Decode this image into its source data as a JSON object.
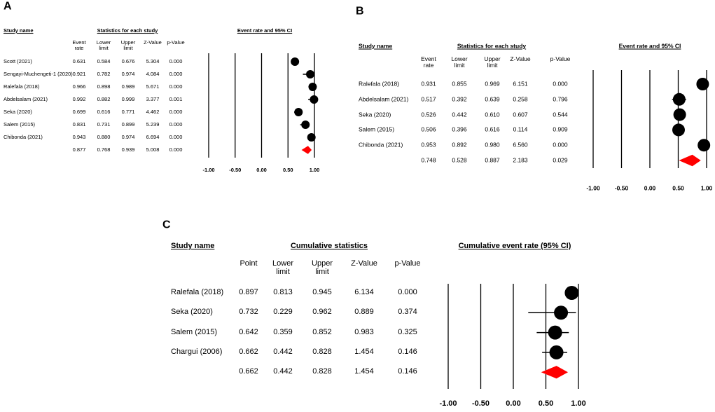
{
  "chart_data": [
    {
      "type": "forest",
      "panel": "A",
      "name_header": "Study name",
      "table_title": "Statistics for each study",
      "title": "Event rate and 95% CI",
      "columns": [
        "Event rate",
        "Lower limit",
        "Upper limit",
        "Z-Value",
        "p-Value"
      ],
      "rows": [
        {
          "name": "Scott (2021)",
          "values": [
            0.631,
            0.584,
            0.676,
            5.304,
            0
          ],
          "value_labels": [
            "0.631",
            "0.584",
            "0.676",
            "5.304",
            "0.000"
          ]
        },
        {
          "name": "Sengayi-Muchengeti-1 (2020)",
          "values": [
            0.921,
            0.782,
            0.974,
            4.084,
            0
          ],
          "value_labels": [
            "0.921",
            "0.782",
            "0.974",
            "4.084",
            "0.000"
          ]
        },
        {
          "name": "Ralefala (2018)",
          "values": [
            0.966,
            0.898,
            0.989,
            5.671,
            0
          ],
          "value_labels": [
            "0.966",
            "0.898",
            "0.989",
            "5.671",
            "0.000"
          ]
        },
        {
          "name": "Abdelsalam (2021)",
          "values": [
            0.992,
            0.882,
            0.999,
            3.377,
            0.001
          ],
          "value_labels": [
            "0.992",
            "0.882",
            "0.999",
            "3.377",
            "0.001"
          ]
        },
        {
          "name": "Seka (2020)",
          "values": [
            0.699,
            0.616,
            0.771,
            4.462,
            0
          ],
          "value_labels": [
            "0.699",
            "0.616",
            "0.771",
            "4.462",
            "0.000"
          ]
        },
        {
          "name": "Salem (2015)",
          "values": [
            0.831,
            0.731,
            0.899,
            5.239,
            0
          ],
          "value_labels": [
            "0.831",
            "0.731",
            "0.899",
            "5.239",
            "0.000"
          ]
        },
        {
          "name": "Chibonda (2021)",
          "values": [
            0.943,
            0.88,
            0.974,
            6.694,
            0
          ],
          "value_labels": [
            "0.943",
            "0.880",
            "0.974",
            "6.694",
            "0.000"
          ]
        }
      ],
      "overall": {
        "values": [
          0.877,
          0.768,
          0.939,
          5.008,
          0
        ],
        "value_labels": [
          "0.877",
          "0.768",
          "0.939",
          "5.008",
          "0.000"
        ]
      },
      "xlim": [
        -1,
        1
      ],
      "xticks": [
        {
          "value": -1,
          "label": "-1.00"
        },
        {
          "value": -0.5,
          "label": "-0.50"
        },
        {
          "value": 0,
          "label": "0.00"
        },
        {
          "value": 0.5,
          "label": "0.50"
        },
        {
          "value": 1,
          "label": "1.00"
        }
      ],
      "color": "#000000",
      "summary_color": "#ff0000",
      "grid": true
    },
    {
      "type": "forest",
      "panel": "B",
      "name_header": "Study name",
      "table_title": "Statistics for each study",
      "title": "Event rate and 95% CI",
      "columns": [
        "Event rate",
        "Lower limit",
        "Upper limit",
        "Z-Value",
        "p-Value"
      ],
      "rows": [
        {
          "name": "Ralefala (2018)",
          "values": [
            0.931,
            0.855,
            0.969,
            6.151,
            0
          ],
          "value_labels": [
            "0.931",
            "0.855",
            "0.969",
            "6.151",
            "0.000"
          ]
        },
        {
          "name": "Abdelsalam (2021)",
          "values": [
            0.517,
            0.392,
            0.639,
            0.258,
            0.796
          ],
          "value_labels": [
            "0.517",
            "0.392",
            "0.639",
            "0.258",
            "0.796"
          ]
        },
        {
          "name": "Seka (2020)",
          "values": [
            0.526,
            0.442,
            0.61,
            0.607,
            0.544
          ],
          "value_labels": [
            "0.526",
            "0.442",
            "0.610",
            "0.607",
            "0.544"
          ]
        },
        {
          "name": "Salem (2015)",
          "values": [
            0.506,
            0.396,
            0.616,
            0.114,
            0.909
          ],
          "value_labels": [
            "0.506",
            "0.396",
            "0.616",
            "0.114",
            "0.909"
          ]
        },
        {
          "name": "Chibonda (2021)",
          "values": [
            0.953,
            0.892,
            0.98,
            6.56,
            0
          ],
          "value_labels": [
            "0.953",
            "0.892",
            "0.980",
            "6.560",
            "0.000"
          ]
        }
      ],
      "overall": {
        "values": [
          0.748,
          0.528,
          0.887,
          2.183,
          0.029
        ],
        "value_labels": [
          "0.748",
          "0.528",
          "0.887",
          "2.183",
          "0.029"
        ]
      },
      "xlim": [
        -1,
        1
      ],
      "xticks": [
        {
          "value": -1,
          "label": "-1.00"
        },
        {
          "value": -0.5,
          "label": "-0.50"
        },
        {
          "value": 0,
          "label": "0.00"
        },
        {
          "value": 0.5,
          "label": "0.50"
        },
        {
          "value": 1,
          "label": "1.00"
        }
      ],
      "color": "#000000",
      "summary_color": "#ff0000",
      "grid": true
    },
    {
      "type": "forest",
      "panel": "C",
      "name_header": "Study name",
      "table_title": "Cumulative statistics",
      "title": "Cumulative event rate (95% CI)",
      "columns": [
        "Point",
        "Lower limit",
        "Upper limit",
        "Z-Value",
        "p-Value"
      ],
      "rows": [
        {
          "name": "Ralefala (2018)",
          "values": [
            0.897,
            0.813,
            0.945,
            6.134,
            0
          ],
          "value_labels": [
            "0.897",
            "0.813",
            "0.945",
            "6.134",
            "0.000"
          ]
        },
        {
          "name": "Seka (2020)",
          "values": [
            0.732,
            0.229,
            0.962,
            0.889,
            0.374
          ],
          "value_labels": [
            "0.732",
            "0.229",
            "0.962",
            "0.889",
            "0.374"
          ]
        },
        {
          "name": "Salem (2015)",
          "values": [
            0.642,
            0.359,
            0.852,
            0.983,
            0.325
          ],
          "value_labels": [
            "0.642",
            "0.359",
            "0.852",
            "0.983",
            "0.325"
          ]
        },
        {
          "name": "Chargui (2006)",
          "values": [
            0.662,
            0.442,
            0.828,
            1.454,
            0.146
          ],
          "value_labels": [
            "0.662",
            "0.442",
            "0.828",
            "1.454",
            "0.146"
          ]
        }
      ],
      "overall": {
        "values": [
          0.662,
          0.442,
          0.828,
          1.454,
          0.146
        ],
        "value_labels": [
          "0.662",
          "0.442",
          "0.828",
          "1.454",
          "0.146"
        ]
      },
      "xlim": [
        -1,
        1
      ],
      "xticks": [
        {
          "value": -1,
          "label": "-1.00"
        },
        {
          "value": -0.5,
          "label": "-0.50"
        },
        {
          "value": 0,
          "label": "0.00"
        },
        {
          "value": 0.5,
          "label": "0.50"
        },
        {
          "value": 1,
          "label": "1.00"
        }
      ],
      "color": "#000000",
      "summary_color": "#ff0000",
      "grid": true
    }
  ]
}
